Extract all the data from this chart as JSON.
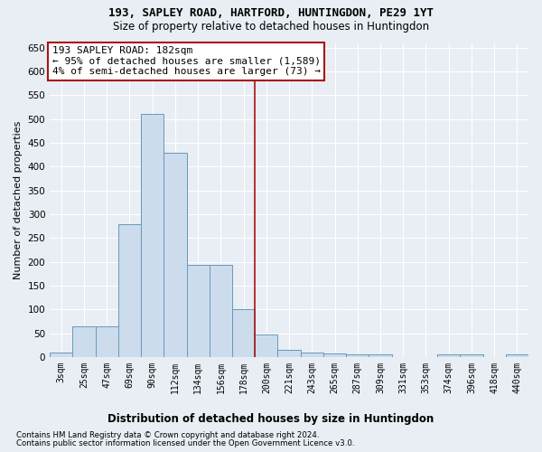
{
  "title": "193, SAPLEY ROAD, HARTFORD, HUNTINGDON, PE29 1YT",
  "subtitle": "Size of property relative to detached houses in Huntingdon",
  "xlabel": "Distribution of detached houses by size in Huntingdon",
  "ylabel": "Number of detached properties",
  "bar_color": "#ccdcec",
  "bar_edge_color": "#6699bb",
  "background_color": "#e8eef4",
  "grid_color": "#ffffff",
  "annotation_box_color": "#aa1111",
  "property_line_color": "#aa1111",
  "annotation_text": "193 SAPLEY ROAD: 182sqm\n← 95% of detached houses are smaller (1,589)\n4% of semi-detached houses are larger (73) →",
  "footer1": "Contains HM Land Registry data © Crown copyright and database right 2024.",
  "footer2": "Contains public sector information licensed under the Open Government Licence v3.0.",
  "bin_labels": [
    "3sqm",
    "25sqm",
    "47sqm",
    "69sqm",
    "90sqm",
    "112sqm",
    "134sqm",
    "156sqm",
    "178sqm",
    "200sqm",
    "221sqm",
    "243sqm",
    "265sqm",
    "287sqm",
    "309sqm",
    "331sqm",
    "353sqm",
    "374sqm",
    "396sqm",
    "418sqm",
    "440sqm"
  ],
  "bar_values": [
    10,
    65,
    65,
    280,
    510,
    430,
    193,
    193,
    100,
    47,
    15,
    10,
    7,
    5,
    5,
    0,
    0,
    5,
    5,
    0,
    5
  ],
  "property_line_x": 8.5,
  "ylim": [
    0,
    660
  ],
  "yticks": [
    0,
    50,
    100,
    150,
    200,
    250,
    300,
    350,
    400,
    450,
    500,
    550,
    600,
    650
  ]
}
